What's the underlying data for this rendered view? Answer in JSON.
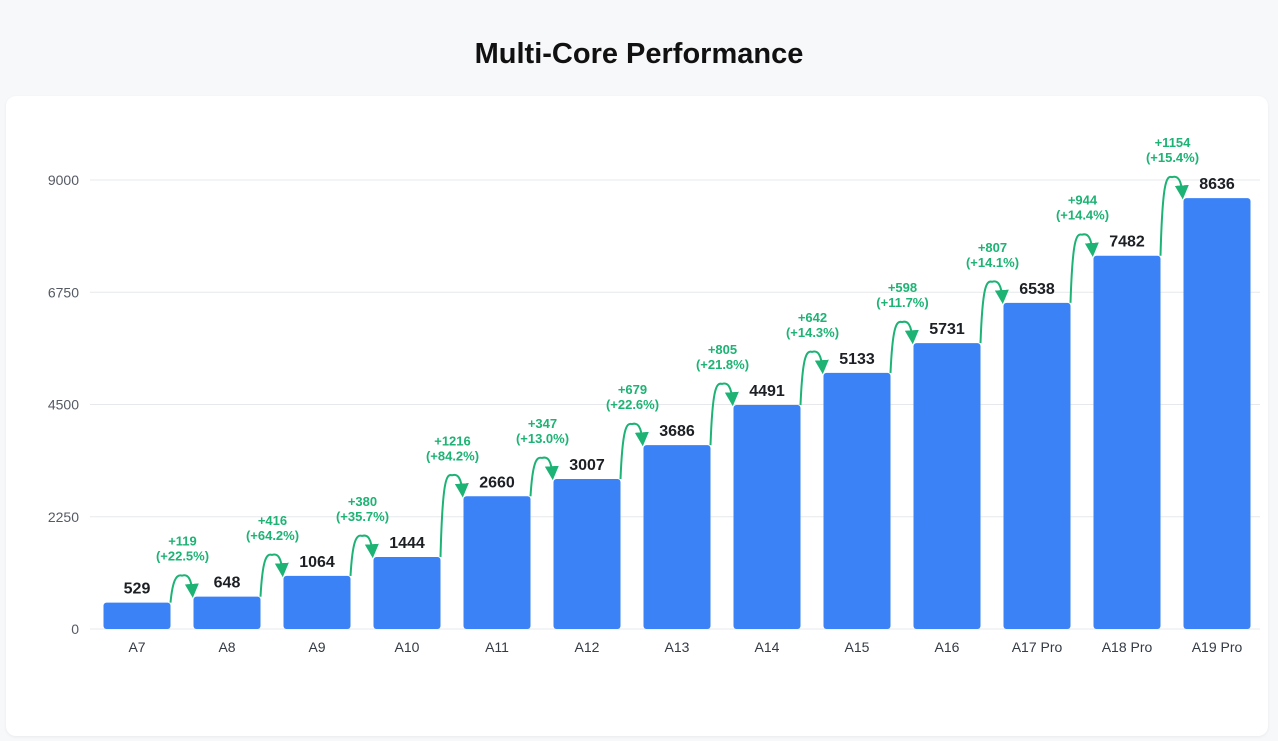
{
  "title": "Multi-Core Performance",
  "colors": {
    "bar": "#3b82f6",
    "delta": "#1db374",
    "grid": "#e6e8ec",
    "background": "#f7f8fa",
    "card": "#ffffff"
  },
  "chart_data": {
    "type": "bar",
    "title": "Multi-Core Performance",
    "xlabel": "",
    "ylabel": "",
    "ylim": [
      0,
      9000
    ],
    "yticks": [
      0,
      2250,
      4500,
      6750,
      9000
    ],
    "grid": true,
    "categories": [
      "A7",
      "A8",
      "A9",
      "A10",
      "A11",
      "A12",
      "A13",
      "A14",
      "A15",
      "A16",
      "A17 Pro",
      "A18 Pro",
      "A19 Pro"
    ],
    "values": [
      529,
      648,
      1064,
      1444,
      2660,
      3007,
      3686,
      4491,
      5133,
      5731,
      6538,
      7482,
      8636
    ],
    "value_labels": [
      "529",
      "648",
      "1064",
      "1444",
      "2660",
      "3007",
      "3686",
      "4491",
      "5133",
      "5731",
      "6538",
      "7482",
      "8636"
    ],
    "annotations": [
      {
        "delta": "+119",
        "pct": "(+22.5%)"
      },
      {
        "delta": "+416",
        "pct": "(+64.2%)"
      },
      {
        "delta": "+380",
        "pct": "(+35.7%)"
      },
      {
        "delta": "+1216",
        "pct": "(+84.2%)"
      },
      {
        "delta": "+347",
        "pct": "(+13.0%)"
      },
      {
        "delta": "+679",
        "pct": "(+22.6%)"
      },
      {
        "delta": "+805",
        "pct": "(+21.8%)"
      },
      {
        "delta": "+642",
        "pct": "(+14.3%)"
      },
      {
        "delta": "+598",
        "pct": "(+11.7%)"
      },
      {
        "delta": "+807",
        "pct": "(+14.1%)"
      },
      {
        "delta": "+944",
        "pct": "(+14.4%)"
      },
      {
        "delta": "+1154",
        "pct": "(+15.4%)"
      }
    ]
  }
}
